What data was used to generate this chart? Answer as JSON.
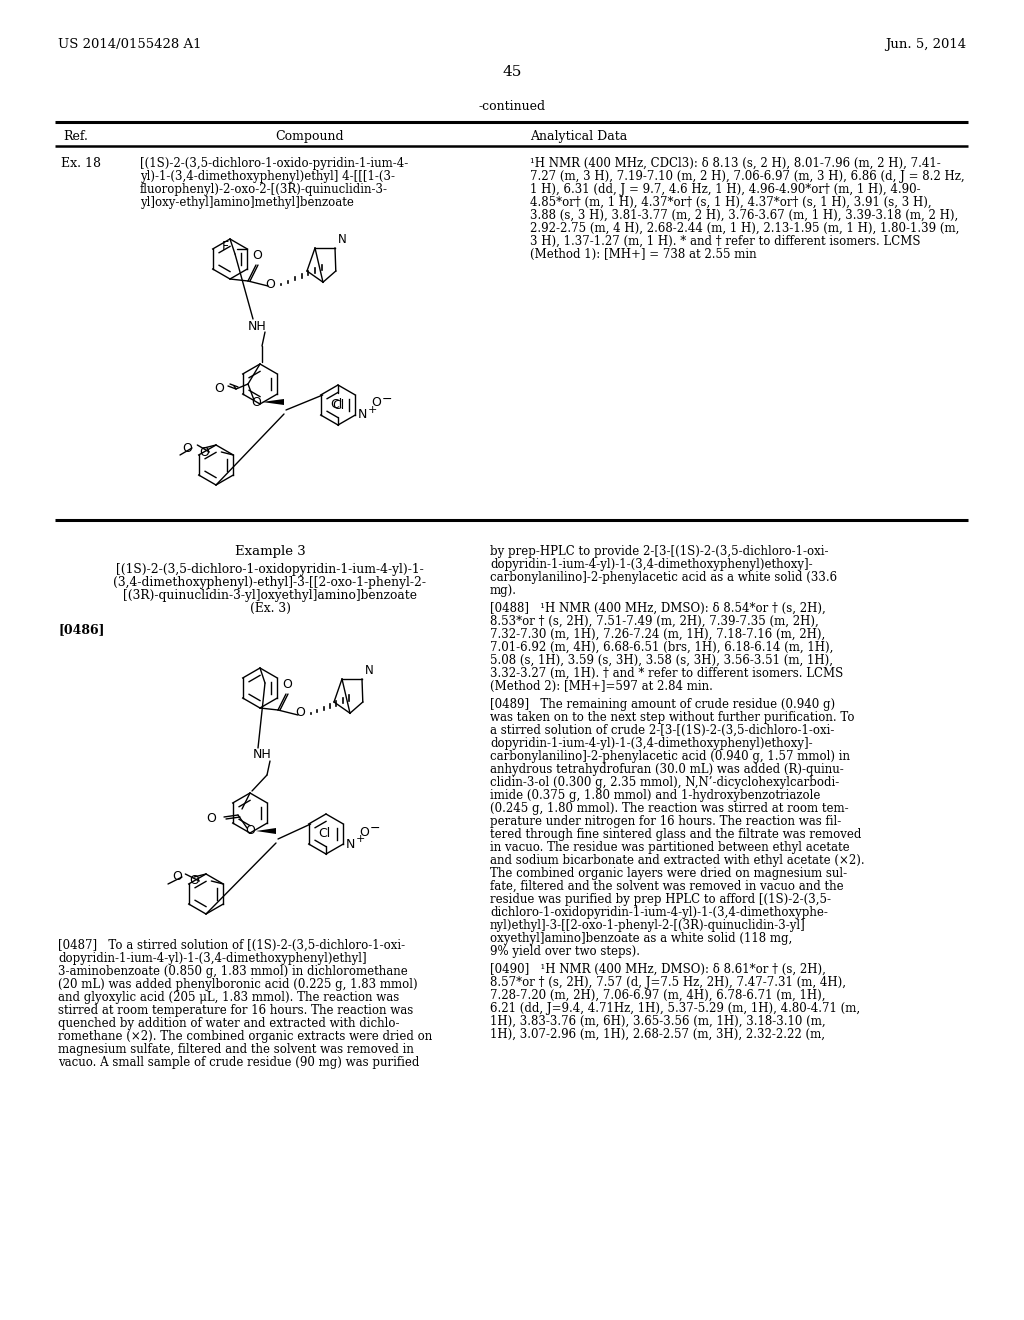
{
  "header_left": "US 2014/0155428 A1",
  "header_right": "Jun. 5, 2014",
  "page_number": "45",
  "continued_label": "-continued",
  "col_headers": [
    "Ref.",
    "Compound",
    "Analytical Data"
  ],
  "ex18_ref": "Ex. 18",
  "ex18_compound_lines": [
    "[(1S)-2-(3,5-dichloro-1-oxido-pyridin-1-ium-4-",
    "yl)-1-(3,4-dimethoxyphenyl)ethyl] 4-[[[1-(3-",
    "fluorophenyl)-2-oxo-2-[(3R)-quinuclidin-3-",
    "yl]oxy-ethyl]amino]methyl]benzoate"
  ],
  "ex18_analytical_lines": [
    "¹H NMR (400 MHz, CDCl3): δ 8.13 (s, 2 H), 8.01-7.96 (m, 2 H), 7.41-",
    "7.27 (m, 3 H), 7.19-7.10 (m, 2 H), 7.06-6.97 (m, 3 H), 6.86 (d, J = 8.2 Hz,",
    "1 H), 6.31 (dd, J = 9.7, 4.6 Hz, 1 H), 4.96-4.90*or† (m, 1 H), 4.90-",
    "4.85*or† (m, 1 H), 4.37*or† (s, 1 H), 4.37*or† (s, 1 H), 3.91 (s, 3 H),",
    "3.88 (s, 3 H), 3.81-3.77 (m, 2 H), 3.76-3.67 (m, 1 H), 3.39-3.18 (m, 2 H),",
    "2.92-2.75 (m, 4 H), 2.68-2.44 (m, 1 H), 2.13-1.95 (m, 1 H), 1.80-1.39 (m,",
    "3 H), 1.37-1.27 (m, 1 H). * and † refer to different isomers. LCMS",
    "(Method 1): [MH+] = 738 at 2.55 min"
  ],
  "example3_title": "Example 3",
  "example3_name_lines": [
    "[(1S)-2-(3,5-dichloro-1-oxidopyridin-1-ium-4-yl)-1-",
    "(3,4-dimethoxyphenyl)-ethyl]-3-[[2-oxo-1-phenyl-2-",
    "[(3R)-quinuclidin-3-yl]oxyethyl]amino]benzoate",
    "(Ex. 3)"
  ],
  "para0486_label": "[0486]",
  "para0487_lines": [
    "[0487]   To a stirred solution of [(1S)-2-(3,5-dichloro-1-oxi-",
    "dopyridin-1-ium-4-yl)-1-(3,4-dimethoxyphenyl)ethyl]",
    "3-aminobenzoate (0.850 g, 1.83 mmol) in dichloromethane",
    "(20 mL) was added phenylboronic acid (0.225 g, 1.83 mmol)",
    "and glyoxylic acid (205 μL, 1.83 mmol). The reaction was",
    "stirred at room temperature for 16 hours. The reaction was",
    "quenched by addition of water and extracted with dichlo-",
    "romethane (×2). The combined organic extracts were dried on",
    "magnesium sulfate, filtered and the solvent was removed in",
    "vacuo. A small sample of crude residue (90 mg) was purified"
  ],
  "right_top_lines": [
    "by prep-HPLC to provide 2-[3-[(1S)-2-(3,5-dichloro-1-oxi-",
    "dopyridin-1-ium-4-yl)-1-(3,4-dimethoxyphenyl)ethoxy]-",
    "carbonylanilino]-2-phenylacetic acid as a white solid (33.6",
    "mg)."
  ],
  "para0488_lines": [
    "[0488]   ¹H NMR (400 MHz, DMSO): δ 8.54*or † (s, 2H),",
    "8.53*or † (s, 2H), 7.51-7.49 (m, 2H), 7.39-7.35 (m, 2H),",
    "7.32-7.30 (m, 1H), 7.26-7.24 (m, 1H), 7.18-7.16 (m, 2H),",
    "7.01-6.92 (m, 4H), 6.68-6.51 (brs, 1H), 6.18-6.14 (m, 1H),",
    "5.08 (s, 1H), 3.59 (s, 3H), 3.58 (s, 3H), 3.56-3.51 (m, 1H),",
    "3.32-3.27 (m, 1H). † and * refer to different isomers. LCMS",
    "(Method 2): [MH+]=597 at 2.84 min."
  ],
  "para0489_lines": [
    "[0489]   The remaining amount of crude residue (0.940 g)",
    "was taken on to the next step without further purification. To",
    "a stirred solution of crude 2-[3-[(1S)-2-(3,5-dichloro-1-oxi-",
    "dopyridin-1-ium-4-yl)-1-(3,4-dimethoxyphenyl)ethoxy]-",
    "carbonylanilino]-2-phenylacetic acid (0.940 g, 1.57 mmol) in",
    "anhydrous tetrahydrofuran (30.0 mL) was added (R)-quinu-",
    "clidin-3-ol (0.300 g, 2.35 mmol), N,N’-dicyclohexylcarbodi-",
    "imide (0.375 g, 1.80 mmol) and 1-hydroxybenzotriazole",
    "(0.245 g, 1.80 mmol). The reaction was stirred at room tem-",
    "perature under nitrogen for 16 hours. The reaction was fil-",
    "tered through fine sintered glass and the filtrate was removed",
    "in vacuo. The residue was partitioned between ethyl acetate",
    "and sodium bicarbonate and extracted with ethyl acetate (×2).",
    "The combined organic layers were dried on magnesium sul-",
    "fate, filtered and the solvent was removed in vacuo and the",
    "residue was purified by prep HPLC to afford [(1S)-2-(3,5-",
    "dichloro-1-oxidopyridin-1-ium-4-yl)-1-(3,4-dimethoxyphe-",
    "nyl)ethyl]-3-[[2-oxo-1-phenyl-2-[(3R)-quinuclidin-3-yl]",
    "oxyethyl]amino]benzoate as a white solid (118 mg,",
    "9% yield over two steps)."
  ],
  "para0490_lines": [
    "[0490]   ¹H NMR (400 MHz, DMSO): δ 8.61*or † (s, 2H),",
    "8.57*or † (s, 2H), 7.57 (d, J=7.5 Hz, 2H), 7.47-7.31 (m, 4H),",
    "7.28-7.20 (m, 2H), 7.06-6.97 (m, 4H), 6.78-6.71 (m, 1H),",
    "6.21 (dd, J=9.4, 4.71Hz, 1H), 5.37-5.29 (m, 1H), 4.80-4.71 (m,",
    "1H), 3.83-3.76 (m, 6H), 3.65-3.56 (m, 1H), 3.18-3.10 (m,",
    "1H), 3.07-2.96 (m, 1H), 2.68-2.57 (m, 3H), 2.32-2.22 (m,"
  ]
}
